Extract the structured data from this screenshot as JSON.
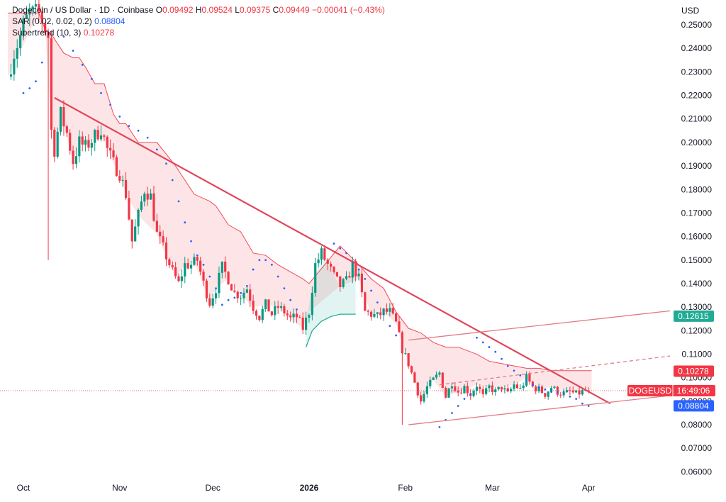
{
  "header": {
    "symbol": "Dogecoin / US Dollar · 1D · Coinbase",
    "o_label": "O",
    "o_value": "0.09492",
    "h_label": "H",
    "h_value": "0.09524",
    "l_label": "L",
    "l_value": "0.09375",
    "c_label": "C",
    "c_value": "0.09449",
    "change": "−0.00041 (−0.43%)",
    "sar_label": "SAR (0.02, 0.02, 0.2)",
    "sar_value": "0.08804",
    "supertrend_label": "Supertrend (10, 3)",
    "supertrend_value": "0.10278"
  },
  "currency": "USD",
  "colors": {
    "up": "#089981",
    "down": "#f23645",
    "sar": "#2962ff",
    "supertrend_down": "#f23645",
    "supertrend_up": "#22ab94",
    "trendline": "#e0465a",
    "channel": "#e27a86"
  },
  "badges": {
    "upper_channel": {
      "text": "0.12615",
      "color": "#22ab94"
    },
    "supertrend": {
      "text": "0.10278",
      "color": "#f23645"
    },
    "symbol": {
      "name": "DOGEUSD",
      "countdown": "16:49:06",
      "color": "#f23645"
    },
    "sar": {
      "text": "0.08804",
      "color": "#2962ff"
    }
  },
  "chart_data": {
    "type": "candlestick",
    "y_axis": {
      "min": 0.055,
      "max": 0.255,
      "ticks": [
        "0.25000",
        "0.24000",
        "0.23000",
        "0.22000",
        "0.21000",
        "0.20000",
        "0.19000",
        "0.18000",
        "0.17000",
        "0.16000",
        "0.15000",
        "0.14000",
        "0.13000",
        "0.12000",
        "0.11000",
        "0.10000",
        "0.09000",
        "0.08000",
        "0.07000",
        "0.06000"
      ]
    },
    "x_axis": {
      "ticks": [
        {
          "label": "Oct",
          "day": 0,
          "bold": false
        },
        {
          "label": "Nov",
          "day": 31,
          "bold": false
        },
        {
          "label": "Dec",
          "day": 61,
          "bold": false
        },
        {
          "label": "2026",
          "day": 92,
          "bold": true
        },
        {
          "label": "Feb",
          "day": 123,
          "bold": false
        },
        {
          "label": "Mar",
          "day": 151,
          "bold": false
        },
        {
          "label": "Apr",
          "day": 182,
          "bold": false
        }
      ]
    },
    "last_close": 0.09449,
    "close_path": [
      [
        -5,
        0.228
      ],
      [
        -3,
        0.238
      ],
      [
        -1,
        0.245
      ],
      [
        0,
        0.25
      ],
      [
        2,
        0.255
      ],
      [
        5,
        0.255
      ],
      [
        8,
        0.245
      ],
      [
        9,
        0.205
      ],
      [
        10,
        0.197
      ],
      [
        12,
        0.212
      ],
      [
        14,
        0.204
      ],
      [
        16,
        0.192
      ],
      [
        18,
        0.2
      ],
      [
        20,
        0.198
      ],
      [
        22,
        0.201
      ],
      [
        25,
        0.206
      ],
      [
        27,
        0.197
      ],
      [
        29,
        0.191
      ],
      [
        31,
        0.187
      ],
      [
        33,
        0.178
      ],
      [
        35,
        0.158
      ],
      [
        37,
        0.169
      ],
      [
        39,
        0.18
      ],
      [
        41,
        0.177
      ],
      [
        43,
        0.161
      ],
      [
        45,
        0.155
      ],
      [
        48,
        0.145
      ],
      [
        50,
        0.14
      ],
      [
        52,
        0.148
      ],
      [
        54,
        0.148
      ],
      [
        56,
        0.15
      ],
      [
        58,
        0.14
      ],
      [
        60,
        0.132
      ],
      [
        62,
        0.138
      ],
      [
        64,
        0.147
      ],
      [
        66,
        0.142
      ],
      [
        68,
        0.136
      ],
      [
        70,
        0.135
      ],
      [
        72,
        0.138
      ],
      [
        74,
        0.13
      ],
      [
        76,
        0.126
      ],
      [
        78,
        0.131
      ],
      [
        80,
        0.127
      ],
      [
        82,
        0.13
      ],
      [
        84,
        0.128
      ],
      [
        86,
        0.125
      ],
      [
        88,
        0.126
      ],
      [
        90,
        0.121
      ],
      [
        92,
        0.128
      ],
      [
        93,
        0.138
      ],
      [
        94,
        0.148
      ],
      [
        96,
        0.153
      ],
      [
        98,
        0.148
      ],
      [
        100,
        0.143
      ],
      [
        102,
        0.139
      ],
      [
        104,
        0.141
      ],
      [
        106,
        0.148
      ],
      [
        108,
        0.142
      ],
      [
        110,
        0.128
      ],
      [
        112,
        0.127
      ],
      [
        114,
        0.126
      ],
      [
        116,
        0.128
      ],
      [
        118,
        0.128
      ],
      [
        120,
        0.123
      ],
      [
        122,
        0.112
      ],
      [
        124,
        0.106
      ],
      [
        126,
        0.098
      ],
      [
        128,
        0.09
      ],
      [
        130,
        0.096
      ],
      [
        132,
        0.099
      ],
      [
        134,
        0.102
      ],
      [
        136,
        0.092
      ],
      [
        138,
        0.098
      ],
      [
        140,
        0.094
      ],
      [
        142,
        0.096
      ],
      [
        144,
        0.093
      ],
      [
        146,
        0.097
      ],
      [
        148,
        0.092
      ],
      [
        150,
        0.096
      ],
      [
        152,
        0.094
      ],
      [
        154,
        0.096
      ],
      [
        156,
        0.093
      ],
      [
        158,
        0.097
      ],
      [
        160,
        0.095
      ],
      [
        162,
        0.1
      ],
      [
        164,
        0.096
      ],
      [
        166,
        0.095
      ],
      [
        168,
        0.093
      ],
      [
        170,
        0.096
      ],
      [
        172,
        0.094
      ],
      [
        174,
        0.093
      ],
      [
        176,
        0.094
      ],
      [
        178,
        0.093
      ],
      [
        180,
        0.094
      ],
      [
        182,
        0.095
      ]
    ],
    "spikes": [
      {
        "day": 8,
        "low": 0.15
      },
      {
        "day": 122,
        "low": 0.08
      }
    ],
    "supertrend_down": [
      [
        -5,
        0.255
      ],
      [
        5,
        0.255
      ],
      [
        7,
        0.248
      ],
      [
        9,
        0.246
      ],
      [
        11,
        0.242
      ],
      [
        13,
        0.238
      ],
      [
        16,
        0.236
      ],
      [
        18,
        0.236
      ],
      [
        20,
        0.232
      ],
      [
        23,
        0.225
      ],
      [
        26,
        0.225
      ],
      [
        29,
        0.212
      ],
      [
        31,
        0.208
      ],
      [
        33,
        0.208
      ],
      [
        37,
        0.2
      ],
      [
        43,
        0.2
      ],
      [
        46,
        0.195
      ],
      [
        49,
        0.19
      ],
      [
        52,
        0.184
      ],
      [
        55,
        0.178
      ],
      [
        60,
        0.175
      ],
      [
        62,
        0.173
      ],
      [
        66,
        0.165
      ],
      [
        70,
        0.162
      ],
      [
        74,
        0.153
      ],
      [
        78,
        0.152
      ],
      [
        82,
        0.148
      ],
      [
        86,
        0.145
      ],
      [
        90,
        0.142
      ],
      [
        92,
        0.14
      ],
      [
        102,
        0.156
      ],
      [
        108,
        0.148
      ],
      [
        112,
        0.142
      ],
      [
        116,
        0.138
      ],
      [
        120,
        0.128
      ],
      [
        124,
        0.121
      ],
      [
        128,
        0.119
      ],
      [
        132,
        0.115
      ],
      [
        136,
        0.113
      ],
      [
        140,
        0.113
      ],
      [
        146,
        0.11
      ],
      [
        150,
        0.107
      ],
      [
        154,
        0.106
      ],
      [
        158,
        0.105
      ],
      [
        162,
        0.104
      ],
      [
        166,
        0.104
      ],
      [
        170,
        0.103
      ],
      [
        176,
        0.103
      ],
      [
        183,
        0.103
      ]
    ],
    "supertrend_up": [
      [
        91,
        0.113
      ],
      [
        93,
        0.12
      ],
      [
        96,
        0.124
      ],
      [
        99,
        0.126
      ],
      [
        102,
        0.127
      ],
      [
        107,
        0.127
      ]
    ],
    "sar_points": [
      [
        0,
        0.221
      ],
      [
        2,
        0.223
      ],
      [
        4,
        0.226
      ],
      [
        6,
        0.234
      ],
      [
        13,
        0.245
      ],
      [
        16,
        0.239
      ],
      [
        19,
        0.233
      ],
      [
        22,
        0.227
      ],
      [
        25,
        0.221
      ],
      [
        28,
        0.216
      ],
      [
        31,
        0.211
      ],
      [
        34,
        0.207
      ],
      [
        37,
        0.205
      ],
      [
        40,
        0.202
      ],
      [
        43,
        0.197
      ],
      [
        46,
        0.191
      ],
      [
        48,
        0.184
      ],
      [
        50,
        0.175
      ],
      [
        52,
        0.166
      ],
      [
        54,
        0.158
      ],
      [
        56,
        0.152
      ],
      [
        58,
        0.148
      ],
      [
        60,
        0.143
      ],
      [
        62,
        0.138
      ],
      [
        64,
        0.131
      ],
      [
        66,
        0.133
      ],
      [
        68,
        0.134
      ],
      [
        70,
        0.136
      ],
      [
        72,
        0.139
      ],
      [
        74,
        0.146
      ],
      [
        76,
        0.15
      ],
      [
        78,
        0.15
      ],
      [
        80,
        0.148
      ],
      [
        82,
        0.143
      ],
      [
        84,
        0.138
      ],
      [
        86,
        0.133
      ],
      [
        88,
        0.129
      ],
      [
        100,
        0.157
      ],
      [
        102,
        0.155
      ],
      [
        104,
        0.153
      ],
      [
        106,
        0.149
      ],
      [
        108,
        0.146
      ],
      [
        110,
        0.142
      ],
      [
        112,
        0.137
      ],
      [
        114,
        0.132
      ],
      [
        116,
        0.127
      ],
      [
        118,
        0.122
      ],
      [
        120,
        0.118
      ],
      [
        134,
        0.079
      ],
      [
        136,
        0.082
      ],
      [
        138,
        0.085
      ],
      [
        140,
        0.088
      ],
      [
        142,
        0.091
      ],
      [
        144,
        0.093
      ],
      [
        146,
        0.117
      ],
      [
        148,
        0.115
      ],
      [
        150,
        0.113
      ],
      [
        152,
        0.111
      ],
      [
        154,
        0.108
      ],
      [
        156,
        0.105
      ],
      [
        158,
        0.103
      ],
      [
        160,
        0.101
      ],
      [
        162,
        0.099
      ],
      [
        164,
        0.097
      ],
      [
        166,
        0.096
      ],
      [
        168,
        0.095
      ],
      [
        170,
        0.094
      ],
      [
        172,
        0.094
      ],
      [
        174,
        0.094
      ],
      [
        176,
        0.092
      ],
      [
        178,
        0.091
      ],
      [
        180,
        0.089
      ],
      [
        182,
        0.088
      ]
    ],
    "trendlines": [
      {
        "kind": "main",
        "from": [
          10,
          0.219
        ],
        "to": [
          189,
          0.089
        ]
      },
      {
        "kind": "channel_upper",
        "from": [
          124,
          0.116
        ],
        "to": [
          219,
          0.13
        ]
      },
      {
        "kind": "channel_upper_dashed",
        "from": [
          134,
          0.097
        ],
        "to": [
          219,
          0.111
        ]
      },
      {
        "kind": "channel_lower",
        "from": [
          124,
          0.08
        ],
        "to": [
          219,
          0.094
        ]
      }
    ]
  }
}
